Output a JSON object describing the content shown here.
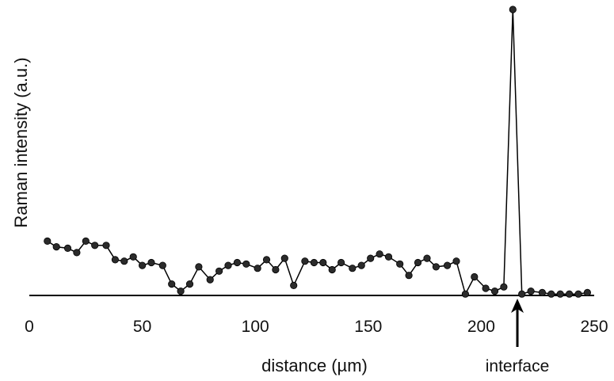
{
  "chart_data": {
    "type": "line",
    "title": "",
    "xlabel": "distance (µm)",
    "ylabel": "Raman intensity (a.u.)",
    "xlim": [
      0,
      250
    ],
    "ylim": [
      0,
      100
    ],
    "xticks": [
      0,
      50,
      100,
      150,
      200,
      250
    ],
    "grid": false,
    "legend": "none",
    "series_color": "#000000",
    "annotation": {
      "label": "interface",
      "x": 216
    },
    "series": [
      {
        "x": [
          8,
          12,
          17,
          21,
          25,
          29,
          34,
          38,
          42,
          46,
          50,
          54,
          59,
          63,
          67,
          71,
          75,
          80,
          84,
          88,
          92,
          96,
          101,
          105,
          109,
          113,
          117,
          122,
          126,
          130,
          134,
          138,
          143,
          147,
          151,
          155,
          159,
          164,
          168,
          172,
          176,
          180,
          185,
          189,
          193,
          197,
          202,
          206,
          210,
          214,
          218,
          222,
          227,
          231,
          235,
          239,
          243,
          247
        ],
        "y": [
          19,
          17,
          16.5,
          15,
          19,
          17.5,
          17.5,
          12.5,
          12,
          13.5,
          10.5,
          11.5,
          10.5,
          4,
          1.5,
          4,
          10,
          5.5,
          8.5,
          10.5,
          11.5,
          11,
          9.5,
          12.5,
          9,
          13,
          3.5,
          12,
          11.5,
          11.5,
          9,
          11.5,
          9.5,
          10.5,
          13,
          14.5,
          13.5,
          11,
          7,
          11.5,
          13,
          10,
          10.5,
          12,
          0.5,
          6.5,
          2.5,
          1.5,
          3,
          100,
          0.5,
          1.5,
          1,
          0.5,
          0.5,
          0.5,
          0.5,
          1
        ]
      }
    ]
  }
}
